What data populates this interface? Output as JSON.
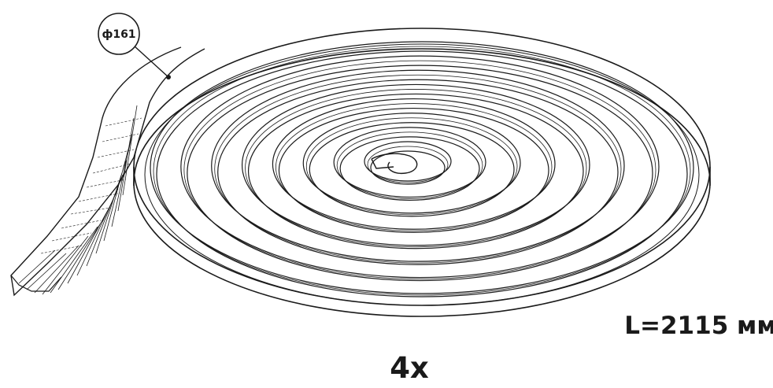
{
  "part": {
    "callout_label": "ф161",
    "length_label": "L=2115 мм",
    "quantity_label": "4x"
  },
  "colors": {
    "ink": "#1a1a1a",
    "paper": "#ffffff"
  }
}
